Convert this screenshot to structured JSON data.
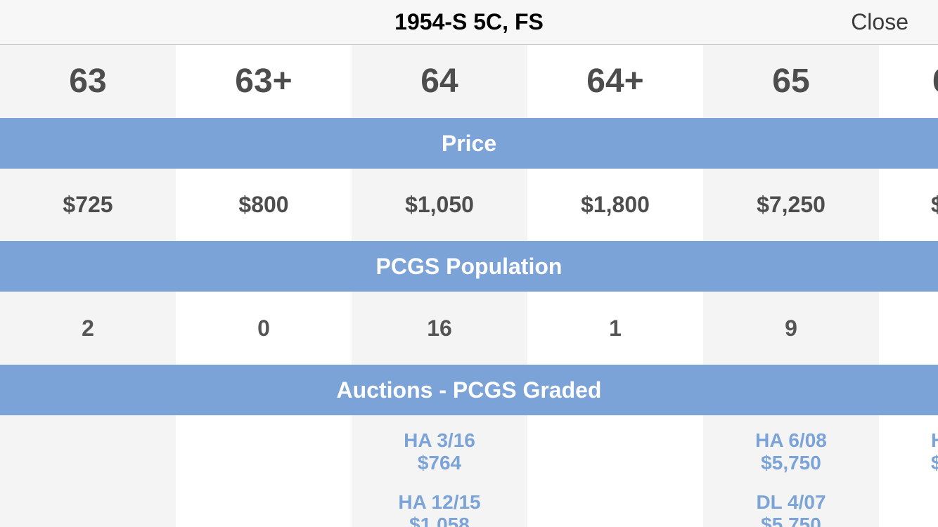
{
  "navbar": {
    "title": "1954-S 5C, FS",
    "close_label": "Close"
  },
  "grades": [
    "63",
    "63+",
    "64",
    "64+",
    "65",
    "6"
  ],
  "sections": {
    "price": "Price",
    "population": "PCGS Population",
    "auctions": "Auctions - PCGS Graded"
  },
  "prices": [
    "$725",
    "$800",
    "$1,050",
    "$1,800",
    "$7,250",
    "$1"
  ],
  "population": [
    "2",
    "0",
    "16",
    "1",
    "9",
    ""
  ],
  "auctions": {
    "col3": [
      {
        "source": "HA 3/16",
        "price": "$764"
      },
      {
        "source": "HA 12/15",
        "price": "$1,058"
      }
    ],
    "col5": [
      {
        "source": "HA 6/08",
        "price": "$5,750"
      },
      {
        "source": "DL 4/07",
        "price": "$5,750"
      }
    ],
    "col6": [
      {
        "source": "H",
        "price": "$"
      }
    ]
  },
  "colors": {
    "section_bg": "#7ba3d8",
    "alt_cell_bg": "#f4f4f4",
    "link": "#7ba3d8"
  }
}
